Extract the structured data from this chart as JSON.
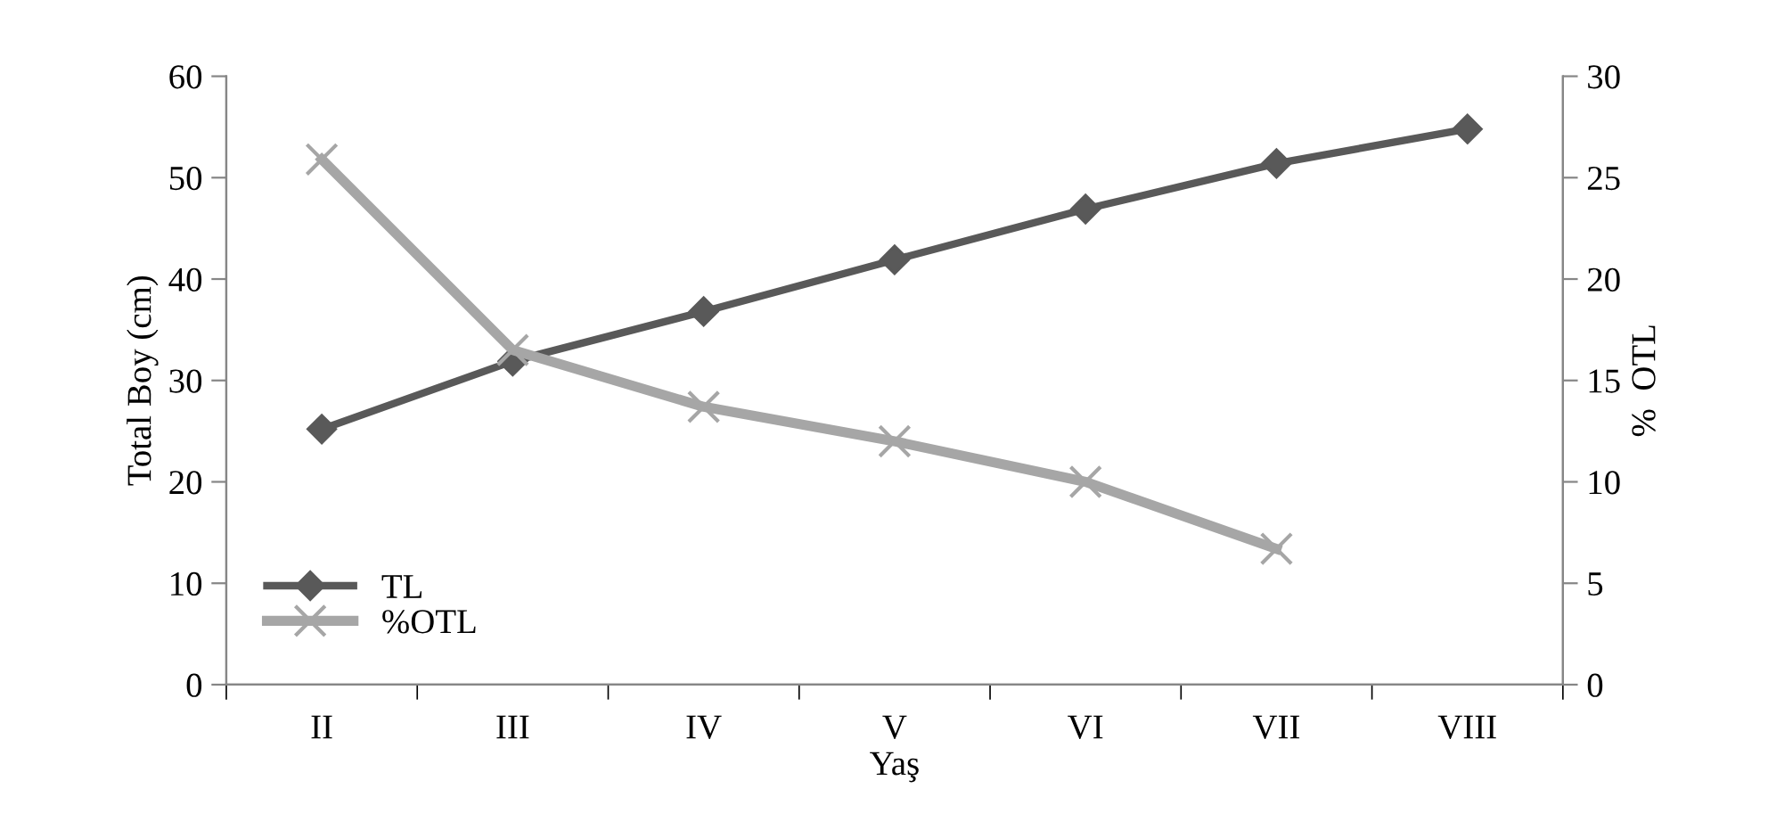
{
  "chart_data": {
    "type": "line",
    "xlabel": "Yaş",
    "ylabel": "Total Boy (cm)",
    "y2label": "%  OTL",
    "categories": [
      "II",
      "III",
      "IV",
      "V",
      "VI",
      "VII",
      "VIII"
    ],
    "series": [
      {
        "name": "TL",
        "color": "#595959",
        "marker": "diamond",
        "values": [
          25.2,
          31.9,
          36.8,
          41.9,
          46.9,
          51.4,
          54.8
        ]
      },
      {
        "name": "%OTL",
        "color": "#a6a6a6",
        "marker": "cross",
        "axis": "y2",
        "values": [
          25.9,
          16.5,
          13.7,
          12.0,
          10.0,
          6.7,
          null
        ]
      }
    ],
    "ylim": [
      0,
      60
    ],
    "yticks": [
      0,
      10,
      20,
      30,
      40,
      50,
      60
    ],
    "y2lim": [
      0,
      30
    ],
    "y2ticks": [
      0,
      5,
      10,
      15,
      20,
      25,
      30
    ],
    "grid": false,
    "legend": "bottom left"
  }
}
